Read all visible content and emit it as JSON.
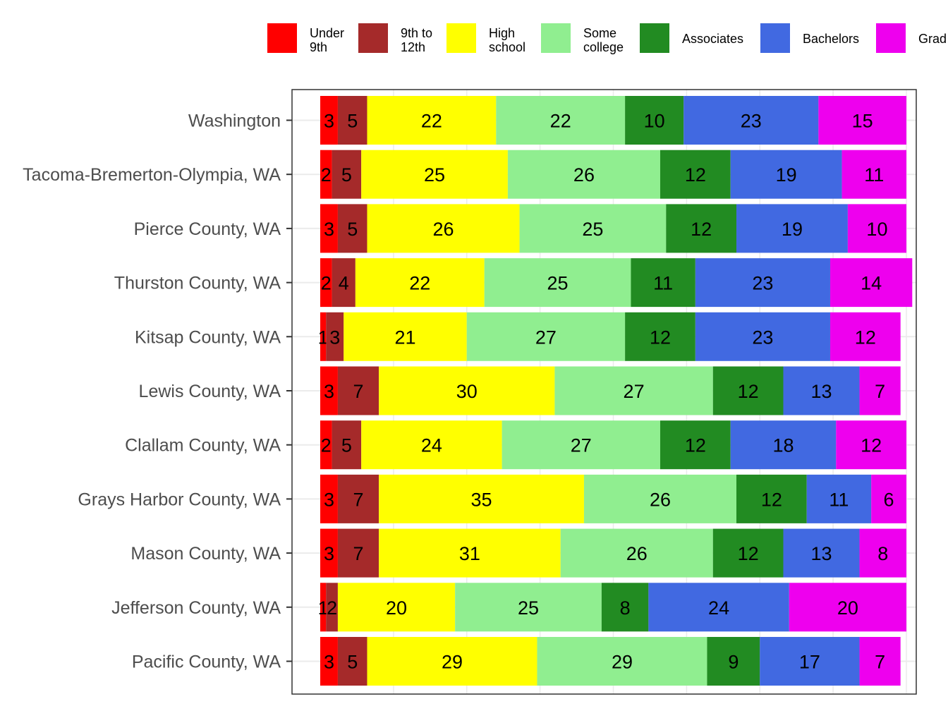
{
  "chart_data": {
    "type": "bar",
    "orientation": "horizontal",
    "stacked": true,
    "grid": true,
    "legend_position": "top",
    "xlim": [
      0,
      100
    ],
    "categories": [
      "Washington",
      "Tacoma-Bremerton-Olympia, WA",
      "Pierce County, WA",
      "Thurston County, WA",
      "Kitsap County, WA",
      "Lewis County, WA",
      "Clallam County, WA",
      "Grays Harbor County, WA",
      "Mason County, WA",
      "Jefferson County, WA",
      "Pacific County, WA"
    ],
    "series": [
      {
        "name": "Under 9th",
        "legend_lines": [
          "Under",
          "9th"
        ],
        "color": "#ff0000",
        "values": [
          3,
          2,
          3,
          2,
          1,
          3,
          2,
          3,
          3,
          1,
          3
        ]
      },
      {
        "name": "9th to 12th",
        "legend_lines": [
          "9th to",
          "12th"
        ],
        "color": "#a52a2a",
        "values": [
          5,
          5,
          5,
          4,
          3,
          7,
          5,
          7,
          7,
          2,
          5
        ]
      },
      {
        "name": "High school",
        "legend_lines": [
          "High",
          "school"
        ],
        "color": "#ffff00",
        "values": [
          22,
          25,
          26,
          22,
          21,
          30,
          24,
          35,
          31,
          20,
          29
        ]
      },
      {
        "name": "Some college",
        "legend_lines": [
          "Some",
          "college"
        ],
        "color": "#90ee90",
        "values": [
          22,
          26,
          25,
          25,
          27,
          27,
          27,
          26,
          26,
          25,
          29
        ]
      },
      {
        "name": "Associates",
        "legend_lines": [
          "Associates"
        ],
        "color": "#228b22",
        "values": [
          10,
          12,
          12,
          11,
          12,
          12,
          12,
          12,
          12,
          8,
          9
        ]
      },
      {
        "name": "Bachelors",
        "legend_lines": [
          "Bachelors"
        ],
        "color": "#4169e1",
        "values": [
          23,
          19,
          19,
          23,
          23,
          13,
          18,
          11,
          13,
          24,
          17
        ]
      },
      {
        "name": "Grad",
        "legend_lines": [
          "Grad"
        ],
        "color": "#ee00ee",
        "values": [
          15,
          11,
          10,
          14,
          12,
          7,
          12,
          6,
          8,
          20,
          7
        ]
      }
    ]
  }
}
